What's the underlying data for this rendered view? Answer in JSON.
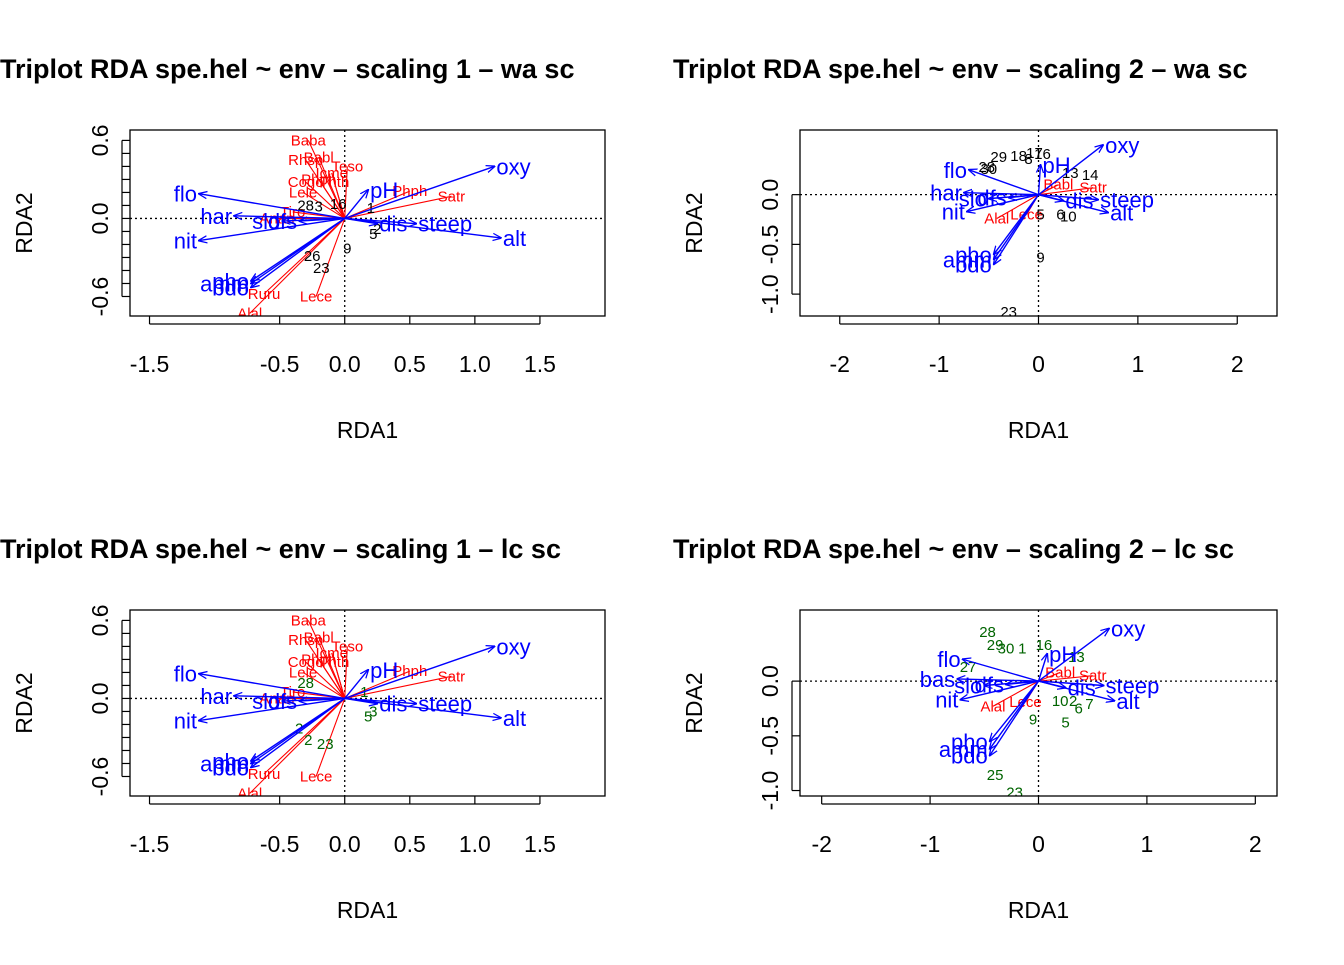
{
  "colors": {
    "env": "#0000ff",
    "species": "#ff0000",
    "sites_wa": "#000000",
    "sites_lc": "#006400",
    "axis": "#000000"
  },
  "chart_data": [
    {
      "type": "scatter",
      "id": "p1",
      "title": "Triplot RDA spe.hel ~ env – scaling 1 – wa sc",
      "xlabel": "RDA1",
      "ylabel": "RDA2",
      "xlim": [
        -1.65,
        2.0
      ],
      "ylim": [
        -0.75,
        0.68
      ],
      "xticks": [
        -1.5,
        -0.5,
        0.0,
        0.5,
        1.0,
        1.5
      ],
      "xtick_labels": [
        "-1.5",
        "-0.5",
        "0.0",
        "0.5",
        "1.0",
        "1.5"
      ],
      "yticks": [
        -0.6,
        0.0,
        0.6
      ],
      "ytick_labels": [
        "-0.6",
        "0.0",
        "0.6"
      ],
      "site_color_key": "sites_wa",
      "env_vectors": [
        {
          "name": "oxy",
          "x": 1.15,
          "y": 0.4
        },
        {
          "name": "flo",
          "x": -1.12,
          "y": 0.19
        },
        {
          "name": "har",
          "x": -0.85,
          "y": 0.02
        },
        {
          "name": "nit",
          "x": -1.12,
          "y": -0.17
        },
        {
          "name": "alt",
          "x": 1.2,
          "y": -0.15
        },
        {
          "name": "pho",
          "x": -0.72,
          "y": -0.48
        },
        {
          "name": "amm",
          "x": -0.72,
          "y": -0.5
        },
        {
          "name": "bdo",
          "x": -0.72,
          "y": -0.53
        },
        {
          "name": "steep",
          "x": 0.55,
          "y": -0.04
        },
        {
          "name": "pH",
          "x": 0.18,
          "y": 0.22
        },
        {
          "name": "slo",
          "x": -0.48,
          "y": -0.02
        },
        {
          "name": "dfs",
          "x": -0.35,
          "y": -0.02
        },
        {
          "name": "dis",
          "x": 0.25,
          "y": -0.04
        }
      ],
      "species": [
        {
          "name": "Baba",
          "x": -0.28,
          "y": 0.6
        },
        {
          "name": "Rhsp",
          "x": -0.3,
          "y": 0.45
        },
        {
          "name": "Babl",
          "x": -0.2,
          "y": 0.47
        },
        {
          "name": "Teso",
          "x": 0.02,
          "y": 0.4
        },
        {
          "name": "Icme",
          "x": -0.1,
          "y": 0.35
        },
        {
          "name": "Phph",
          "x": -0.2,
          "y": 0.3
        },
        {
          "name": "Thth",
          "x": -0.08,
          "y": 0.28
        },
        {
          "name": "Cogo",
          "x": -0.3,
          "y": 0.28
        },
        {
          "name": "Lele",
          "x": -0.32,
          "y": 0.2
        },
        {
          "name": "Satr",
          "x": 0.82,
          "y": 0.17
        },
        {
          "name": "Phph",
          "x": 0.5,
          "y": 0.21
        },
        {
          "name": "Tiro",
          "x": -0.4,
          "y": 0.05
        },
        {
          "name": "Anan",
          "x": -0.52,
          "y": 0.0
        },
        {
          "name": "Ruru",
          "x": -0.62,
          "y": -0.58
        },
        {
          "name": "Lece",
          "x": -0.22,
          "y": -0.6
        },
        {
          "name": "Alal",
          "x": -0.73,
          "y": -0.73
        }
      ],
      "sites": [
        {
          "name": "9",
          "x": 0.02,
          "y": -0.23
        },
        {
          "name": "26",
          "x": -0.25,
          "y": -0.29
        },
        {
          "name": "23",
          "x": -0.18,
          "y": -0.38
        },
        {
          "name": "28",
          "x": -0.3,
          "y": 0.1
        },
        {
          "name": "16",
          "x": -0.05,
          "y": 0.11
        },
        {
          "name": "1",
          "x": 0.2,
          "y": 0.08
        },
        {
          "name": "2",
          "x": 0.25,
          "y": -0.08
        },
        {
          "name": "3",
          "x": -0.2,
          "y": 0.09
        },
        {
          "name": "5",
          "x": 0.22,
          "y": -0.12
        }
      ]
    },
    {
      "type": "scatter",
      "id": "p2",
      "title": "Triplot RDA spe.hel ~ env – scaling 2 – wa sc",
      "xlabel": "RDA1",
      "ylabel": "RDA2",
      "xlim": [
        -2.4,
        2.4
      ],
      "ylim": [
        -1.22,
        0.65
      ],
      "xticks": [
        -2,
        -1,
        0,
        1,
        2
      ],
      "xtick_labels": [
        "-2",
        "-1",
        "0",
        "1",
        "2"
      ],
      "yticks": [
        -1.0,
        -0.5,
        0.0
      ],
      "ytick_labels": [
        "-1.0",
        "-0.5",
        "0.0"
      ],
      "site_color_key": "sites_wa",
      "env_vectors": [
        {
          "name": "oxy",
          "x": 0.65,
          "y": 0.5
        },
        {
          "name": "flo",
          "x": -0.7,
          "y": 0.25
        },
        {
          "name": "har",
          "x": -0.75,
          "y": 0.02
        },
        {
          "name": "nit",
          "x": -0.72,
          "y": -0.17
        },
        {
          "name": "alt",
          "x": 0.7,
          "y": -0.18
        },
        {
          "name": "steep",
          "x": 0.6,
          "y": -0.05
        },
        {
          "name": "pH",
          "x": 0.02,
          "y": 0.3
        },
        {
          "name": "slo",
          "x": -0.5,
          "y": -0.04
        },
        {
          "name": "dfs",
          "x": -0.3,
          "y": -0.03
        },
        {
          "name": "dis",
          "x": 0.25,
          "y": -0.06
        },
        {
          "name": "pho",
          "x": -0.45,
          "y": -0.6
        },
        {
          "name": "amm",
          "x": -0.45,
          "y": -0.65
        },
        {
          "name": "bdo",
          "x": -0.45,
          "y": -0.7
        }
      ],
      "species": [
        {
          "name": "Satr",
          "x": 0.55,
          "y": 0.07
        },
        {
          "name": "Babl",
          "x": 0.2,
          "y": 0.1
        },
        {
          "name": "Alal",
          "x": -0.42,
          "y": -0.24
        },
        {
          "name": "Lece",
          "x": -0.12,
          "y": -0.2
        }
      ],
      "sites": [
        {
          "name": "29",
          "x": -0.4,
          "y": 0.38
        },
        {
          "name": "18",
          "x": -0.2,
          "y": 0.39
        },
        {
          "name": "17",
          "x": -0.04,
          "y": 0.42
        },
        {
          "name": "16",
          "x": 0.04,
          "y": 0.41
        },
        {
          "name": "8",
          "x": -0.1,
          "y": 0.36
        },
        {
          "name": "28",
          "x": -0.52,
          "y": 0.28
        },
        {
          "name": "30",
          "x": -0.5,
          "y": 0.26
        },
        {
          "name": "13",
          "x": 0.32,
          "y": 0.22
        },
        {
          "name": "14",
          "x": 0.52,
          "y": 0.2
        },
        {
          "name": "9",
          "x": 0.02,
          "y": -0.63
        },
        {
          "name": "23",
          "x": -0.3,
          "y": -1.18
        },
        {
          "name": "10",
          "x": 0.3,
          "y": -0.22
        },
        {
          "name": "5",
          "x": 0.02,
          "y": -0.2
        },
        {
          "name": "6",
          "x": 0.22,
          "y": -0.2
        }
      ]
    },
    {
      "type": "scatter",
      "id": "p3",
      "title": "Triplot RDA spe.hel ~ env – scaling 1 – lc sc",
      "xlabel": "RDA1",
      "ylabel": "RDA2",
      "xlim": [
        -1.65,
        2.0
      ],
      "ylim": [
        -0.75,
        0.68
      ],
      "xticks": [
        -1.5,
        -0.5,
        0.0,
        0.5,
        1.0,
        1.5
      ],
      "xtick_labels": [
        "-1.5",
        "-0.5",
        "0.0",
        "0.5",
        "1.0",
        "1.5"
      ],
      "yticks": [
        -0.6,
        0.0,
        0.6
      ],
      "ytick_labels": [
        "-0.6",
        "0.0",
        "0.6"
      ],
      "site_color_key": "sites_lc",
      "env_vectors": [
        {
          "name": "oxy",
          "x": 1.15,
          "y": 0.4
        },
        {
          "name": "flo",
          "x": -1.12,
          "y": 0.19
        },
        {
          "name": "har",
          "x": -0.85,
          "y": 0.02
        },
        {
          "name": "nit",
          "x": -1.12,
          "y": -0.17
        },
        {
          "name": "alt",
          "x": 1.2,
          "y": -0.15
        },
        {
          "name": "pho",
          "x": -0.72,
          "y": -0.48
        },
        {
          "name": "amm",
          "x": -0.72,
          "y": -0.5
        },
        {
          "name": "bdo",
          "x": -0.72,
          "y": -0.53
        },
        {
          "name": "steep",
          "x": 0.55,
          "y": -0.04
        },
        {
          "name": "pH",
          "x": 0.18,
          "y": 0.22
        },
        {
          "name": "slo",
          "x": -0.48,
          "y": -0.02
        },
        {
          "name": "dfs",
          "x": -0.35,
          "y": -0.02
        },
        {
          "name": "dis",
          "x": 0.25,
          "y": -0.04
        }
      ],
      "species": [
        {
          "name": "Baba",
          "x": -0.28,
          "y": 0.6
        },
        {
          "name": "Rhsp",
          "x": -0.3,
          "y": 0.45
        },
        {
          "name": "Babl",
          "x": -0.2,
          "y": 0.47
        },
        {
          "name": "Teso",
          "x": 0.02,
          "y": 0.4
        },
        {
          "name": "Icme",
          "x": -0.1,
          "y": 0.35
        },
        {
          "name": "Phph",
          "x": -0.2,
          "y": 0.3
        },
        {
          "name": "Thth",
          "x": -0.08,
          "y": 0.28
        },
        {
          "name": "Cogo",
          "x": -0.3,
          "y": 0.28
        },
        {
          "name": "Lele",
          "x": -0.32,
          "y": 0.2
        },
        {
          "name": "Satr",
          "x": 0.82,
          "y": 0.17
        },
        {
          "name": "Phph",
          "x": 0.5,
          "y": 0.21
        },
        {
          "name": "Tiro",
          "x": -0.4,
          "y": 0.05
        },
        {
          "name": "Anan",
          "x": -0.52,
          "y": 0.0
        },
        {
          "name": "Ruru",
          "x": -0.62,
          "y": -0.58
        },
        {
          "name": "Lece",
          "x": -0.22,
          "y": -0.6
        },
        {
          "name": "Alal",
          "x": -0.73,
          "y": -0.73
        }
      ],
      "sites": [
        {
          "name": "2",
          "x": -0.35,
          "y": -0.23
        },
        {
          "name": "2",
          "x": -0.28,
          "y": -0.32
        },
        {
          "name": "23",
          "x": -0.15,
          "y": -0.35
        },
        {
          "name": "5",
          "x": 0.18,
          "y": -0.14
        },
        {
          "name": "28",
          "x": -0.3,
          "y": 0.12
        },
        {
          "name": "1",
          "x": 0.15,
          "y": 0.05
        },
        {
          "name": "3",
          "x": 0.22,
          "y": -0.1
        }
      ]
    },
    {
      "type": "scatter",
      "id": "p4",
      "title": "Triplot RDA spe.hel ~ env – scaling 2 – lc sc",
      "xlabel": "RDA1",
      "ylabel": "RDA2",
      "xlim": [
        -2.2,
        2.2
      ],
      "ylim": [
        -1.05,
        0.65
      ],
      "xticks": [
        -2,
        -1,
        0,
        1,
        2
      ],
      "xtick_labels": [
        "-2",
        "-1",
        "0",
        "1",
        "2"
      ],
      "yticks": [
        -1.0,
        -0.5,
        0.0
      ],
      "ytick_labels": [
        "-1.0",
        "-0.5",
        "0.0"
      ],
      "site_color_key": "sites_lc",
      "env_vectors": [
        {
          "name": "oxy",
          "x": 0.65,
          "y": 0.48
        },
        {
          "name": "flo",
          "x": -0.7,
          "y": 0.2
        },
        {
          "name": "bas",
          "x": -0.75,
          "y": 0.02
        },
        {
          "name": "nit",
          "x": -0.72,
          "y": -0.17
        },
        {
          "name": "alt",
          "x": 0.7,
          "y": -0.18
        },
        {
          "name": "steep",
          "x": 0.6,
          "y": -0.04
        },
        {
          "name": "pH",
          "x": 0.08,
          "y": 0.25
        },
        {
          "name": "slo",
          "x": -0.5,
          "y": -0.04
        },
        {
          "name": "dfs",
          "x": -0.3,
          "y": -0.03
        },
        {
          "name": "dis",
          "x": 0.25,
          "y": -0.06
        },
        {
          "name": "pho",
          "x": -0.45,
          "y": -0.55
        },
        {
          "name": "amm",
          "x": -0.45,
          "y": -0.62
        },
        {
          "name": "bdo",
          "x": -0.45,
          "y": -0.68
        }
      ],
      "species": [
        {
          "name": "Satr",
          "x": 0.5,
          "y": 0.05
        },
        {
          "name": "Babl",
          "x": 0.2,
          "y": 0.08
        },
        {
          "name": "Alal",
          "x": -0.42,
          "y": -0.23
        },
        {
          "name": "Lece",
          "x": -0.12,
          "y": -0.19
        }
      ],
      "sites": [
        {
          "name": "28",
          "x": -0.47,
          "y": 0.45
        },
        {
          "name": "29",
          "x": -0.4,
          "y": 0.33
        },
        {
          "name": "30",
          "x": -0.3,
          "y": 0.3
        },
        {
          "name": "16",
          "x": 0.05,
          "y": 0.33
        },
        {
          "name": "27",
          "x": -0.65,
          "y": 0.13
        },
        {
          "name": "13",
          "x": 0.35,
          "y": 0.22
        },
        {
          "name": "10",
          "x": 0.2,
          "y": -0.18
        },
        {
          "name": "2",
          "x": 0.32,
          "y": -0.18
        },
        {
          "name": "9",
          "x": -0.05,
          "y": -0.35
        },
        {
          "name": "5",
          "x": 0.25,
          "y": -0.38
        },
        {
          "name": "6",
          "x": 0.37,
          "y": -0.25
        },
        {
          "name": "7",
          "x": 0.47,
          "y": -0.21
        },
        {
          "name": "25",
          "x": -0.4,
          "y": -0.86
        },
        {
          "name": "23",
          "x": -0.22,
          "y": -1.02
        },
        {
          "name": "1",
          "x": -0.15,
          "y": 0.3
        }
      ]
    }
  ]
}
